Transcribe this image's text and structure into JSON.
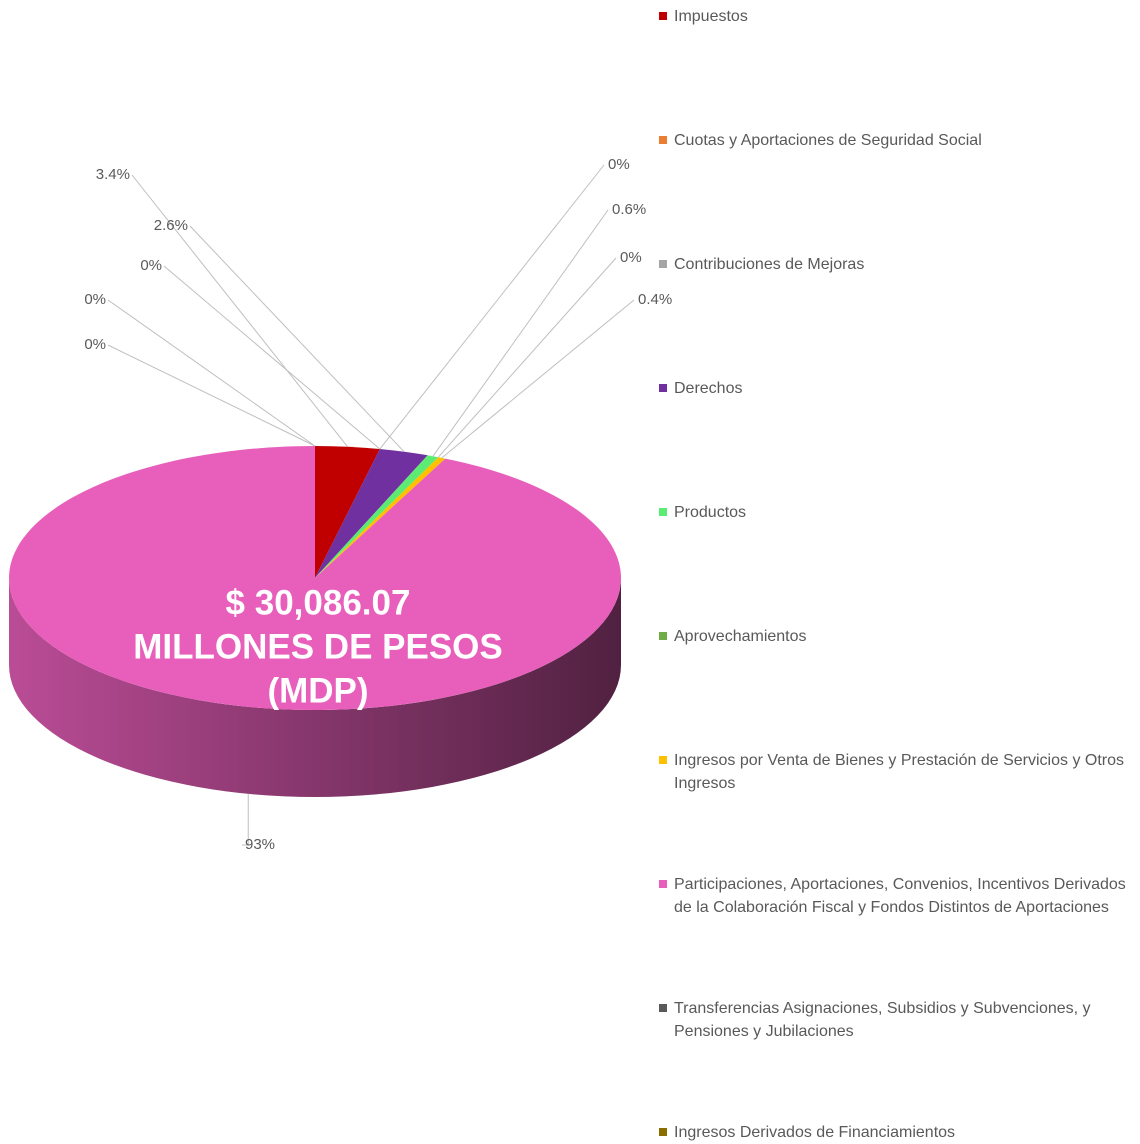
{
  "chart_data": {
    "type": "pie",
    "annotation": [
      "$ 30,086.07",
      "MILLONES DE PESOS",
      "(MDP)"
    ],
    "categories": [
      "Impuestos",
      "Cuotas y Aportaciones de Seguridad Social",
      "Contribuciones de Mejoras",
      "Derechos",
      "Productos",
      "Aprovechamientos",
      "Ingresos por Venta de Bienes y Prestación de Servicios y Otros Ingresos",
      "Participaciones, Aportaciones, Convenios, Incentivos Derivados de la Colaboración Fiscal y Fondos Distintos de Aportaciones",
      "Transferencias Asignaciones, Subsidios y Subvenciones, y Pensiones y Jubilaciones",
      "Ingresos Derivados de Financiamientos"
    ],
    "values": [
      3.4,
      0,
      0,
      2.6,
      0.6,
      0,
      0.4,
      93,
      0,
      0
    ],
    "value_labels": [
      "3.4%",
      "0%",
      "0%",
      "2.6%",
      "0.6%",
      "0%",
      "0.4%",
      "93%",
      "0%",
      "0%"
    ],
    "colors": [
      "#c00000",
      "#ed7d31",
      "#a5a5a5",
      "#7030a0",
      "#5cec74",
      "#70ad47",
      "#ffc000",
      "#e85fbb",
      "#595959",
      "#8b6d00"
    ],
    "legend": "right"
  }
}
